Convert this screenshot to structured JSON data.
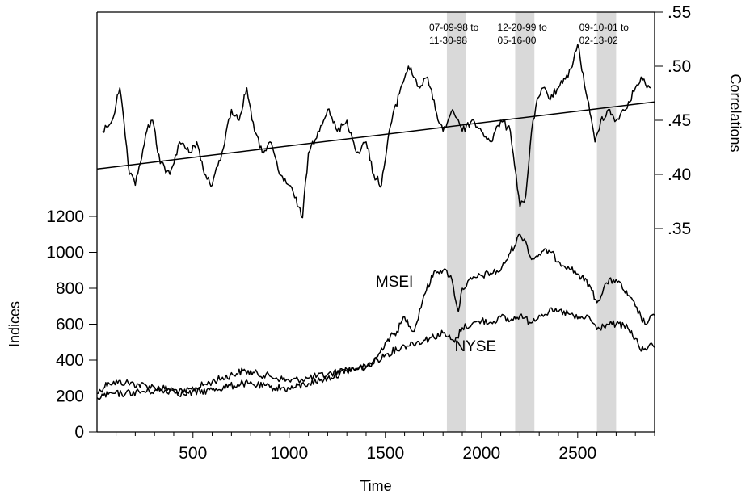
{
  "chart_data": {
    "type": "line",
    "xlabel": "Time",
    "ylabel_left": "Indices",
    "ylabel_right": "Correlations",
    "xlim": [
      1,
      2900
    ],
    "x_ticks": [
      500,
      1000,
      1500,
      2000,
      2500
    ],
    "left_ylim": [
      0,
      1300
    ],
    "left_y_ticks": [
      0,
      200,
      400,
      600,
      800,
      1000,
      1200
    ],
    "right_ylim": [
      0.35,
      0.55
    ],
    "right_y_ticks": [
      ".35",
      ".40",
      ".45",
      ".50",
      ".55"
    ],
    "right_y_tick_values": [
      0.35,
      0.4,
      0.45,
      0.5,
      0.55
    ],
    "grid": false,
    "shaded_periods": [
      {
        "label_line1": "07-09-98 to",
        "label_line2": "11-30-98",
        "x": [
          1820,
          1920
        ]
      },
      {
        "label_line1": "12-20-99 to",
        "label_line2": "05-16-00",
        "x": [
          2175,
          2275
        ]
      },
      {
        "label_line1": "09-10-01 to",
        "label_line2": "02-13-02",
        "x": [
          2600,
          2700
        ]
      }
    ],
    "series": [
      {
        "name": "MSEI",
        "axis": "left",
        "x": [
          1,
          60,
          150,
          300,
          400,
          450,
          600,
          760,
          900,
          1000,
          1100,
          1200,
          1300,
          1400,
          1460,
          1500,
          1560,
          1600,
          1650,
          1700,
          1760,
          1800,
          1840,
          1880,
          1900,
          1950,
          2000,
          2100,
          2150,
          2200,
          2230,
          2260,
          2300,
          2350,
          2400,
          2450,
          2500,
          2560,
          2600,
          2650,
          2700,
          2760,
          2800,
          2850,
          2900
        ],
        "y": [
          215,
          275,
          275,
          250,
          235,
          220,
          280,
          340,
          310,
          285,
          300,
          320,
          350,
          360,
          420,
          500,
          560,
          640,
          560,
          760,
          900,
          900,
          870,
          670,
          800,
          850,
          870,
          900,
          1000,
          1100,
          1060,
          960,
          990,
          1010,
          950,
          920,
          880,
          820,
          720,
          830,
          850,
          760,
          700,
          600,
          650
        ]
      },
      {
        "name": "NYSE",
        "axis": "left",
        "x": [
          1,
          60,
          150,
          300,
          400,
          450,
          600,
          760,
          900,
          1000,
          1100,
          1200,
          1300,
          1400,
          1500,
          1600,
          1700,
          1800,
          1860,
          1900,
          1950,
          2000,
          2050,
          2100,
          2150,
          2200,
          2250,
          2300,
          2350,
          2400,
          2450,
          2500,
          2560,
          2600,
          2650,
          2700,
          2760,
          2800,
          2830,
          2870,
          2900
        ],
        "y": [
          190,
          210,
          215,
          230,
          230,
          210,
          235,
          270,
          250,
          240,
          270,
          300,
          340,
          360,
          430,
          480,
          510,
          550,
          500,
          580,
          600,
          620,
          610,
          640,
          620,
          650,
          610,
          650,
          670,
          670,
          660,
          630,
          640,
          570,
          600,
          600,
          580,
          520,
          450,
          480,
          470
        ]
      },
      {
        "name": "",
        "axis": "right",
        "x": [
          30,
          80,
          120,
          170,
          200,
          260,
          290,
          330,
          380,
          430,
          480,
          520,
          560,
          600,
          650,
          700,
          740,
          780,
          820,
          860,
          900,
          950,
          1000,
          1050,
          1070,
          1100,
          1150,
          1200,
          1250,
          1300,
          1350,
          1400,
          1440,
          1480,
          1520,
          1580,
          1620,
          1680,
          1720,
          1760,
          1800,
          1850,
          1880,
          1900,
          1950,
          2000,
          2050,
          2100,
          2150,
          2180,
          2200,
          2230,
          2260,
          2290,
          2320,
          2350,
          2400,
          2450,
          2500,
          2550,
          2590,
          2620,
          2660,
          2700,
          2750,
          2800,
          2830,
          2860,
          2880
        ],
        "y": [
          0.44,
          0.45,
          0.48,
          0.4,
          0.39,
          0.44,
          0.45,
          0.41,
          0.4,
          0.43,
          0.42,
          0.43,
          0.4,
          0.39,
          0.42,
          0.46,
          0.45,
          0.48,
          0.44,
          0.42,
          0.43,
          0.4,
          0.39,
          0.37,
          0.36,
          0.42,
          0.44,
          0.46,
          0.44,
          0.45,
          0.42,
          0.43,
          0.4,
          0.39,
          0.44,
          0.48,
          0.5,
          0.48,
          0.49,
          0.46,
          0.44,
          0.46,
          0.45,
          0.44,
          0.45,
          0.44,
          0.43,
          0.45,
          0.44,
          0.4,
          0.37,
          0.38,
          0.44,
          0.47,
          0.48,
          0.47,
          0.48,
          0.49,
          0.52,
          0.47,
          0.43,
          0.45,
          0.46,
          0.45,
          0.46,
          0.48,
          0.49,
          0.48,
          0.48
        ]
      },
      {
        "name": "",
        "kind": "trend",
        "axis": "right",
        "x": [
          1,
          2900
        ],
        "y": [
          0.405,
          0.467
        ]
      }
    ],
    "annotations": [
      {
        "text": "MSEI",
        "x": 1450,
        "y": 810,
        "axis": "left"
      },
      {
        "text": "NYSE",
        "x": 1860,
        "y": 450,
        "axis": "left"
      }
    ]
  }
}
